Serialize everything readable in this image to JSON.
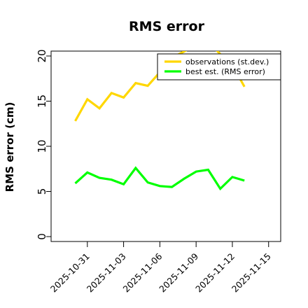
{
  "chart_data": {
    "type": "line",
    "title": "RMS error",
    "xlabel": "",
    "ylabel": "RMS error (cm)",
    "ylim": [
      0,
      20
    ],
    "yticks": [
      0,
      5,
      10,
      15,
      20
    ],
    "xlim": [
      "2025-10-28",
      "2025-11-16"
    ],
    "xticks": [
      {
        "label": "2025-10-31",
        "date": "2025-10-31",
        "color": "#000000"
      },
      {
        "label": "2025-11-03",
        "date": "2025-11-03",
        "color": "#000000"
      },
      {
        "label": "2025-11-06",
        "date": "2025-11-06",
        "color": "#228b22"
      },
      {
        "label": "2025-11-09",
        "date": "2025-11-09",
        "color": "#000000"
      },
      {
        "label": "2025-11-12",
        "date": "2025-11-12",
        "color": "#000000"
      },
      {
        "label": "2025-11-15",
        "date": "2025-11-15",
        "color": "#000000"
      }
    ],
    "x": [
      "2025-10-30",
      "2025-10-31",
      "2025-11-01",
      "2025-11-02",
      "2025-11-03",
      "2025-11-04",
      "2025-11-05",
      "2025-11-06",
      "2025-11-07",
      "2025-11-08",
      "2025-11-09",
      "2025-11-10",
      "2025-11-11",
      "2025-11-12",
      "2025-11-13"
    ],
    "series": [
      {
        "name": "observations (st.dev.)",
        "color": "#ffd700",
        "values": [
          12.8,
          15.2,
          14.2,
          15.9,
          15.4,
          17.0,
          16.7,
          18.2,
          19.8,
          20.5,
          21.2,
          21.6,
          20.2,
          19.0,
          16.6
        ]
      },
      {
        "name": "best est. (RMS error)",
        "color": "#00ff00",
        "values": [
          5.9,
          7.1,
          6.5,
          6.3,
          5.8,
          7.6,
          6.0,
          5.6,
          5.5,
          6.4,
          7.2,
          7.4,
          5.3,
          6.6,
          6.2
        ]
      }
    ],
    "legend": "top-right",
    "grid": false
  }
}
